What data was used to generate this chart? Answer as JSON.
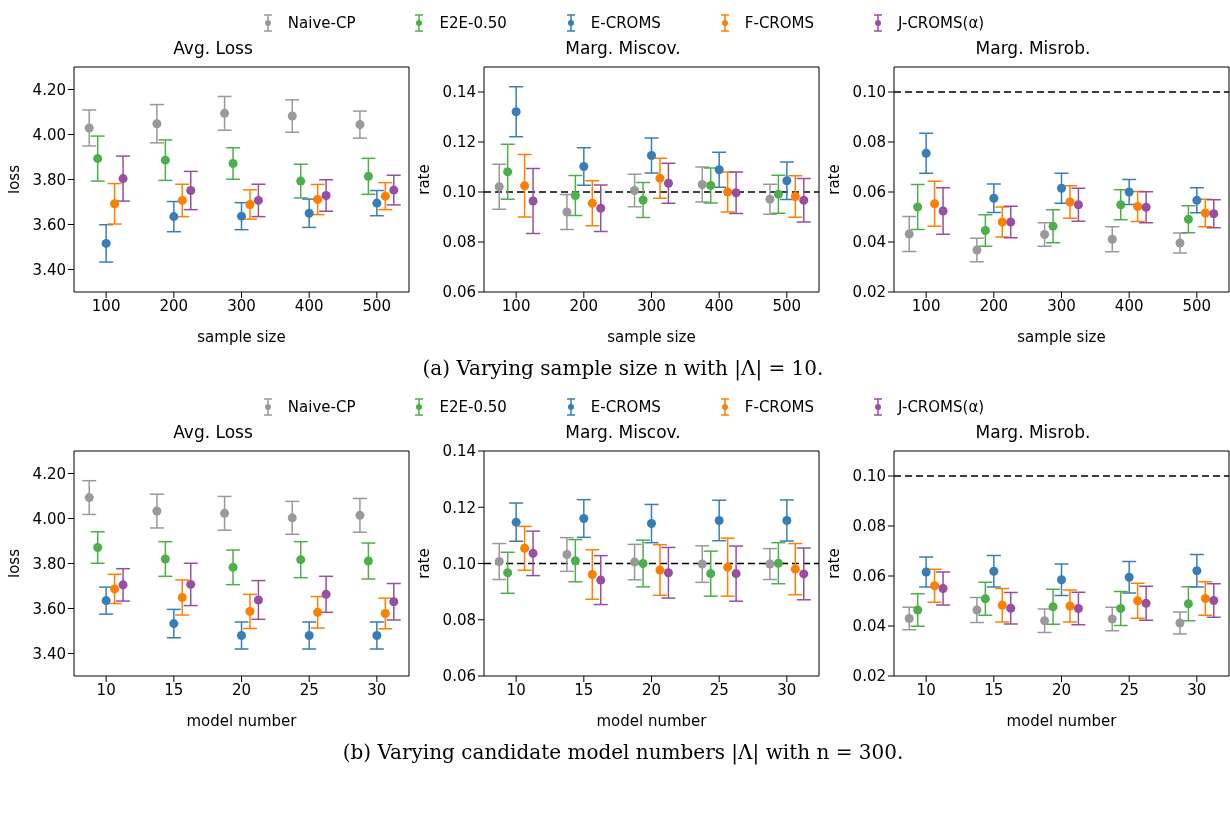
{
  "chart_data": [
    {
      "type": "scatter",
      "title": "Avg. Loss",
      "xlabel": "sample size",
      "ylabel": "loss",
      "marker": "circle",
      "grid": false,
      "legend": "top",
      "xlim": [
        52.5,
        547.5
      ],
      "xticks": [
        100,
        200,
        300,
        400,
        500
      ],
      "ylim": [
        3.3,
        4.3
      ],
      "yticks": [
        {
          "value": 3.4,
          "label": "3.40"
        },
        {
          "value": 3.6,
          "label": "3.60"
        },
        {
          "value": 3.8,
          "label": "3.80"
        },
        {
          "value": 4.0,
          "label": "4.00"
        },
        {
          "value": 4.2,
          "label": "4.20"
        }
      ],
      "series": [
        {
          "name": "Naive-CP",
          "color": "#999999",
          "x": [
            75,
            175,
            275,
            375,
            475
          ],
          "values": [
            4.029,
            4.048,
            4.094,
            4.082,
            4.044
          ],
          "errors": [
            0.08,
            0.085,
            0.075,
            0.072,
            0.06
          ]
        },
        {
          "name": "E2E-0.50",
          "color": "#4daf4a",
          "x": [
            87.5,
            187.5,
            287.5,
            387.5,
            487.5
          ],
          "values": [
            3.893,
            3.886,
            3.871,
            3.793,
            3.814
          ],
          "errors": [
            0.1,
            0.09,
            0.07,
            0.075,
            0.08
          ]
        },
        {
          "name": "E-CROMS",
          "color": "#377eb8",
          "x": [
            100,
            200,
            300,
            400,
            500
          ],
          "values": [
            3.516,
            3.635,
            3.637,
            3.65,
            3.695
          ],
          "errors": [
            0.083,
            0.067,
            0.06,
            0.063,
            0.056
          ]
        },
        {
          "name": "F-CROMS",
          "color": "#ff7f00",
          "x": [
            112.5,
            212.5,
            312.5,
            412.5,
            512.5
          ],
          "values": [
            3.692,
            3.707,
            3.689,
            3.711,
            3.726
          ],
          "errors": [
            0.09,
            0.072,
            0.065,
            0.067,
            0.06
          ]
        },
        {
          "name": "J-CROMS(α)",
          "color": "#984ea3",
          "x": [
            125,
            225,
            325,
            425,
            525
          ],
          "values": [
            3.804,
            3.751,
            3.707,
            3.729,
            3.753
          ],
          "errors": [
            0.1,
            0.085,
            0.072,
            0.07,
            0.066
          ]
        }
      ],
      "annotations": [
        "(a) Varying sample size n with |Λ| = 10."
      ]
    },
    {
      "type": "scatter",
      "title": "Marg. Miscov.",
      "xlabel": "sample size",
      "ylabel": "rate",
      "marker": "circle",
      "grid": false,
      "xlim": [
        52.5,
        547.5
      ],
      "xticks": [
        100,
        200,
        300,
        400,
        500
      ],
      "ylim": [
        0.06,
        0.15
      ],
      "yticks": [
        {
          "value": 0.06,
          "label": "0.06"
        },
        {
          "value": 0.08,
          "label": "0.08"
        },
        {
          "value": 0.1,
          "label": "0.10"
        },
        {
          "value": 0.12,
          "label": "0.12"
        },
        {
          "value": 0.14,
          "label": "0.14"
        }
      ],
      "ref_lines": [
        {
          "axis": "y",
          "value": 0.1,
          "color": "#000000",
          "line_style": "dashed"
        }
      ],
      "series": [
        {
          "color": "#999999",
          "x": [
            75,
            175,
            275,
            375,
            475
          ],
          "values": [
            0.1021,
            0.092,
            0.1006,
            0.103,
            0.0971
          ],
          "errors": [
            0.009,
            0.007,
            0.0065,
            0.007,
            0.006
          ]
        },
        {
          "color": "#4daf4a",
          "x": [
            87.5,
            187.5,
            287.5,
            387.5,
            487.5
          ],
          "values": [
            0.1081,
            0.0986,
            0.0968,
            0.1026,
            0.0991
          ],
          "errors": [
            0.011,
            0.008,
            0.007,
            0.007,
            0.0076
          ]
        },
        {
          "color": "#377eb8",
          "x": [
            100,
            200,
            300,
            400,
            500
          ],
          "values": [
            0.1321,
            0.1102,
            0.1146,
            0.1089,
            0.1045
          ],
          "errors": [
            0.01,
            0.0075,
            0.007,
            0.007,
            0.0075
          ]
        },
        {
          "color": "#ff7f00",
          "x": [
            112.5,
            212.5,
            312.5,
            412.5,
            512.5
          ],
          "values": [
            0.1025,
            0.0955,
            0.1055,
            0.1,
            0.0982
          ],
          "errors": [
            0.0125,
            0.009,
            0.008,
            0.008,
            0.0083
          ]
        },
        {
          "color": "#984ea3",
          "x": [
            125,
            225,
            325,
            425,
            525
          ],
          "values": [
            0.0964,
            0.0935,
            0.1035,
            0.0997,
            0.0967
          ],
          "errors": [
            0.013,
            0.0093,
            0.008,
            0.0083,
            0.0087
          ]
        }
      ]
    },
    {
      "type": "scatter",
      "title": "Marg. Misrob.",
      "xlabel": "sample size",
      "ylabel": "rate",
      "marker": "circle",
      "grid": false,
      "xlim": [
        52.5,
        547.5
      ],
      "xticks": [
        100,
        200,
        300,
        400,
        500
      ],
      "ylim": [
        0.02,
        0.11
      ],
      "yticks": [
        {
          "value": 0.02,
          "label": "0.02"
        },
        {
          "value": 0.04,
          "label": "0.04"
        },
        {
          "value": 0.06,
          "label": "0.06"
        },
        {
          "value": 0.08,
          "label": "0.08"
        },
        {
          "value": 0.1,
          "label": "0.10"
        }
      ],
      "ref_lines": [
        {
          "axis": "y",
          "value": 0.1,
          "color": "#000000",
          "line_style": "dashed"
        }
      ],
      "series": [
        {
          "color": "#999999",
          "x": [
            75,
            175,
            275,
            375,
            475
          ],
          "values": [
            0.0432,
            0.0368,
            0.043,
            0.0411,
            0.0396
          ],
          "errors": [
            0.007,
            0.0047,
            0.0047,
            0.005,
            0.004
          ]
        },
        {
          "color": "#4daf4a",
          "x": [
            87.5,
            187.5,
            287.5,
            387.5,
            487.5
          ],
          "values": [
            0.054,
            0.0446,
            0.0463,
            0.0549,
            0.0491
          ],
          "errors": [
            0.009,
            0.0063,
            0.0066,
            0.006,
            0.0054
          ]
        },
        {
          "color": "#377eb8",
          "x": [
            100,
            200,
            300,
            400,
            500
          ],
          "values": [
            0.0755,
            0.0575,
            0.0615,
            0.06,
            0.0567
          ],
          "errors": [
            0.008,
            0.0057,
            0.006,
            0.005,
            0.005
          ]
        },
        {
          "color": "#ff7f00",
          "x": [
            112.5,
            212.5,
            312.5,
            412.5,
            512.5
          ],
          "values": [
            0.0553,
            0.048,
            0.056,
            0.0542,
            0.0516
          ],
          "errors": [
            0.009,
            0.006,
            0.0065,
            0.006,
            0.0055
          ]
        },
        {
          "color": "#984ea3",
          "x": [
            125,
            225,
            325,
            425,
            525
          ],
          "values": [
            0.0524,
            0.048,
            0.0549,
            0.0539,
            0.0513
          ],
          "errors": [
            0.0093,
            0.0063,
            0.0066,
            0.0062,
            0.0056
          ]
        }
      ]
    },
    {
      "type": "scatter",
      "title": "Avg. Loss",
      "xlabel": "model number",
      "ylabel": "loss",
      "marker": "circle",
      "grid": false,
      "legend": "top",
      "xlim": [
        7.625,
        32.375
      ],
      "xticks": [
        10,
        15,
        20,
        25,
        30
      ],
      "ylim": [
        3.3,
        4.3
      ],
      "yticks": [
        {
          "value": 3.4,
          "label": "3.40"
        },
        {
          "value": 3.6,
          "label": "3.60"
        },
        {
          "value": 3.8,
          "label": "3.80"
        },
        {
          "value": 4.0,
          "label": "4.00"
        },
        {
          "value": 4.2,
          "label": "4.20"
        }
      ],
      "series": [
        {
          "name": "Naive-CP",
          "color": "#999999",
          "x": [
            8.75,
            13.75,
            18.75,
            23.75,
            28.75
          ],
          "values": [
            4.093,
            4.033,
            4.023,
            4.003,
            4.014
          ],
          "errors": [
            0.075,
            0.075,
            0.075,
            0.073,
            0.075
          ]
        },
        {
          "name": "E2E-0.50",
          "color": "#4daf4a",
          "x": [
            9.375,
            14.375,
            19.375,
            24.375,
            29.375
          ],
          "values": [
            3.871,
            3.82,
            3.783,
            3.817,
            3.811
          ],
          "errors": [
            0.07,
            0.077,
            0.077,
            0.08,
            0.08
          ]
        },
        {
          "name": "E-CROMS",
          "color": "#377eb8",
          "x": [
            10,
            15,
            20,
            25,
            30
          ],
          "values": [
            3.635,
            3.533,
            3.48,
            3.48,
            3.48
          ],
          "errors": [
            0.06,
            0.063,
            0.06,
            0.06,
            0.06
          ]
        },
        {
          "name": "F-CROMS",
          "color": "#ff7f00",
          "x": [
            10.625,
            15.625,
            20.625,
            25.625,
            30.625
          ],
          "values": [
            3.687,
            3.649,
            3.587,
            3.583,
            3.578
          ],
          "errors": [
            0.065,
            0.078,
            0.076,
            0.07,
            0.068
          ]
        },
        {
          "name": "J-CROMS(α)",
          "color": "#984ea3",
          "x": [
            11.25,
            16.25,
            21.25,
            26.25,
            31.25
          ],
          "values": [
            3.705,
            3.707,
            3.638,
            3.663,
            3.63
          ],
          "errors": [
            0.072,
            0.094,
            0.086,
            0.08,
            0.081
          ]
        }
      ],
      "annotations": [
        "(b) Varying candidate model numbers |Λ| with n = 300."
      ]
    },
    {
      "type": "scatter",
      "title": "Marg. Miscov.",
      "xlabel": "model number",
      "ylabel": "rate",
      "marker": "circle",
      "grid": false,
      "xlim": [
        7.625,
        32.375
      ],
      "xticks": [
        10,
        15,
        20,
        25,
        30
      ],
      "ylim": [
        0.06,
        0.14
      ],
      "yticks": [
        {
          "value": 0.06,
          "label": "0.06"
        },
        {
          "value": 0.08,
          "label": "0.08"
        },
        {
          "value": 0.1,
          "label": "0.10"
        },
        {
          "value": 0.12,
          "label": "0.12"
        },
        {
          "value": 0.14,
          "label": "0.14"
        }
      ],
      "ref_lines": [
        {
          "axis": "y",
          "value": 0.1,
          "color": "#000000",
          "line_style": "dashed"
        }
      ],
      "series": [
        {
          "color": "#999999",
          "x": [
            8.75,
            13.75,
            18.75,
            23.75,
            28.75
          ],
          "values": [
            0.1007,
            0.1032,
            0.1005,
            0.0998,
            0.0998
          ],
          "errors": [
            0.0064,
            0.006,
            0.0063,
            0.0065,
            0.0055
          ]
        },
        {
          "color": "#4daf4a",
          "x": [
            9.375,
            14.375,
            19.375,
            24.375,
            29.375
          ],
          "values": [
            0.0967,
            0.101,
            0.1,
            0.0964,
            0.1001
          ],
          "errors": [
            0.0073,
            0.0075,
            0.0083,
            0.008,
            0.0073
          ]
        },
        {
          "color": "#377eb8",
          "x": [
            10,
            15,
            20,
            25,
            30
          ],
          "values": [
            0.1147,
            0.116,
            0.1142,
            0.1153,
            0.1153
          ],
          "errors": [
            0.0068,
            0.0067,
            0.0068,
            0.0072,
            0.0073
          ]
        },
        {
          "color": "#ff7f00",
          "x": [
            10.625,
            15.625,
            20.625,
            25.625,
            30.625
          ],
          "values": [
            0.1054,
            0.0961,
            0.0977,
            0.0987,
            0.098
          ],
          "errors": [
            0.0078,
            0.0088,
            0.009,
            0.0103,
            0.0091
          ]
        },
        {
          "color": "#984ea3",
          "x": [
            11.25,
            16.25,
            21.25,
            26.25,
            31.25
          ],
          "values": [
            0.1036,
            0.0941,
            0.0967,
            0.0964,
            0.0963
          ],
          "errors": [
            0.0079,
            0.0087,
            0.009,
            0.0098,
            0.0092
          ]
        }
      ]
    },
    {
      "type": "scatter",
      "title": "Marg. Misrob.",
      "xlabel": "model number",
      "ylabel": "rate",
      "marker": "circle",
      "grid": false,
      "xlim": [
        7.625,
        32.375
      ],
      "xticks": [
        10,
        15,
        20,
        25,
        30
      ],
      "ylim": [
        0.02,
        0.11
      ],
      "yticks": [
        {
          "value": 0.02,
          "label": "0.02"
        },
        {
          "value": 0.04,
          "label": "0.04"
        },
        {
          "value": 0.06,
          "label": "0.06"
        },
        {
          "value": 0.08,
          "label": "0.08"
        },
        {
          "value": 0.1,
          "label": "0.10"
        }
      ],
      "ref_lines": [
        {
          "axis": "y",
          "value": 0.1,
          "color": "#000000",
          "line_style": "dashed"
        }
      ],
      "series": [
        {
          "color": "#999999",
          "x": [
            8.75,
            13.75,
            18.75,
            23.75,
            28.75
          ],
          "values": [
            0.043,
            0.0464,
            0.0421,
            0.0428,
            0.0412
          ],
          "errors": [
            0.0045,
            0.005,
            0.0047,
            0.0047,
            0.0044
          ]
        },
        {
          "color": "#4daf4a",
          "x": [
            9.375,
            14.375,
            19.375,
            24.375,
            29.375
          ],
          "values": [
            0.0464,
            0.0509,
            0.0477,
            0.047,
            0.0489
          ],
          "errors": [
            0.0065,
            0.0066,
            0.007,
            0.0068,
            0.0068
          ]
        },
        {
          "color": "#377eb8",
          "x": [
            10,
            15,
            20,
            25,
            30
          ],
          "values": [
            0.0616,
            0.0619,
            0.0585,
            0.0595,
            0.0621
          ],
          "errors": [
            0.006,
            0.0063,
            0.0063,
            0.0063,
            0.0065
          ]
        },
        {
          "color": "#ff7f00",
          "x": [
            10.625,
            15.625,
            20.625,
            25.625,
            30.625
          ],
          "values": [
            0.0561,
            0.0483,
            0.048,
            0.0501,
            0.051
          ],
          "errors": [
            0.0066,
            0.0067,
            0.0064,
            0.007,
            0.0067
          ]
        },
        {
          "color": "#984ea3",
          "x": [
            11.25,
            16.25,
            21.25,
            26.25,
            31.25
          ],
          "values": [
            0.055,
            0.0471,
            0.047,
            0.0491,
            0.0502
          ],
          "errors": [
            0.0066,
            0.0063,
            0.0065,
            0.0068,
            0.0067
          ]
        }
      ]
    }
  ]
}
